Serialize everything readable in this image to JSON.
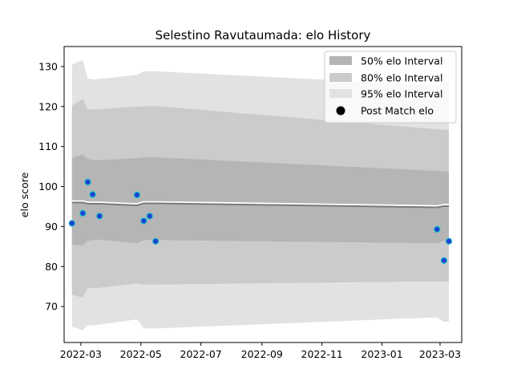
{
  "chart_data": {
    "type": "area",
    "title": "Selestino Ravutaumada: elo History",
    "xlabel": "",
    "ylabel": "elo score",
    "xlim": [
      "2022-02-12",
      "2023-03-23"
    ],
    "ylim": [
      61,
      135
    ],
    "grid": false,
    "legend_position": "top-right",
    "x_ticks": [
      "2022-03",
      "2022-05",
      "2022-07",
      "2022-09",
      "2022-11",
      "2023-01",
      "2023-03"
    ],
    "y_ticks": [
      70,
      80,
      90,
      100,
      110,
      120,
      130
    ],
    "x": [
      "2022-02-20",
      "2022-03-03",
      "2022-03-08",
      "2022-03-14",
      "2022-03-20",
      "2022-04-27",
      "2022-05-04",
      "2022-05-10",
      "2022-05-16",
      "2023-02-26",
      "2023-03-05",
      "2023-03-10"
    ],
    "series": [
      {
        "name": "95% elo Interval",
        "color": "#e2e2e2",
        "lower": [
          65,
          64,
          65.3,
          65.3,
          65.5,
          66.8,
          64.6,
          64.5,
          64.5,
          67.3,
          66.2,
          66.2
        ],
        "upper": [
          130.5,
          131.6,
          127,
          126.8,
          126.9,
          127.9,
          128.8,
          128.8,
          128.8,
          125.3,
          126.2,
          126.2
        ]
      },
      {
        "name": "80% elo Interval",
        "color": "#cbcbcb",
        "lower": [
          73,
          72.2,
          74.7,
          74.6,
          74.7,
          75.8,
          75.5,
          75.5,
          75.5,
          76.3,
          76.2,
          76.2
        ],
        "upper": [
          120.2,
          121.9,
          119.3,
          119.2,
          119.3,
          120,
          120,
          120.1,
          120.1,
          114.3,
          114.2,
          114.2
        ]
      },
      {
        "name": "50% elo Interval",
        "color": "#b5b5b5",
        "lower": [
          85.5,
          85.3,
          86.4,
          86.6,
          86.7,
          85.8,
          86.6,
          86.6,
          86.6,
          85.8,
          86.4,
          86.4
        ],
        "upper": [
          107.1,
          108,
          106.9,
          106.6,
          106.6,
          107.1,
          107.3,
          107.3,
          107.3,
          103.9,
          103.8,
          103.8
        ]
      }
    ],
    "mean_line": {
      "color": "#7a7a7a",
      "values": [
        96,
        96,
        95.7,
        95.7,
        95.7,
        95.3,
        95.8,
        95.8,
        95.8,
        94.8,
        95.1,
        95.1
      ]
    },
    "points": {
      "name": "Post Match elo",
      "color": "#1f3fd0",
      "edge_color": "#17becf",
      "x": [
        "2022-02-20",
        "2022-03-03",
        "2022-03-08",
        "2022-03-13",
        "2022-03-20",
        "2022-04-27",
        "2022-05-04",
        "2022-05-10",
        "2022-05-16",
        "2023-02-26",
        "2023-03-05",
        "2023-03-10"
      ],
      "y": [
        90.8,
        93.3,
        101.1,
        98,
        92.6,
        97.9,
        91.4,
        92.6,
        86.3,
        89.3,
        81.5,
        86.3
      ]
    }
  }
}
